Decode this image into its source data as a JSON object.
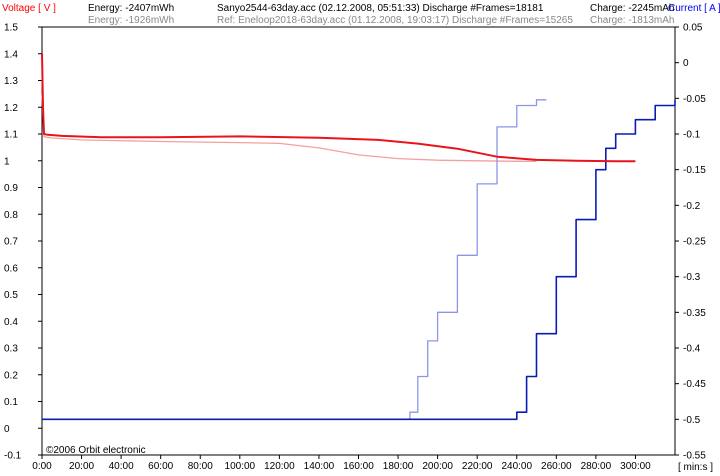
{
  "header": {
    "left_label": "Voltage [ V ]",
    "energy": "Energy: -2407mWh",
    "ref_energy": "Energy: -1926mWh",
    "file": "Sanyo2544-63day.acc (02.12.2008, 05:51:33)   Discharge  #Frames=18181",
    "ref_file": "Ref: Eneloop2018-63day.acc (01.12.2008, 19:03:17)   Discharge  #Frames=15265",
    "charge": "Charge: -2245mAh",
    "ref_charge": "Charge: -1813mAh",
    "right_label": "Current [ A ]"
  },
  "footer": {
    "copyright": "©2006 Orbit electronic",
    "x_unit": "[ min:s ]"
  },
  "colors": {
    "voltage": "#e8141c",
    "ref_voltage": "#f4a0a0",
    "current": "#0a1cb4",
    "ref_current": "#8c96e6",
    "axis_label": "#ff0000",
    "right_label": "#0000ff"
  },
  "chart_data": {
    "type": "line",
    "title": "Sanyo2544-63day.acc (02.12.2008, 05:51:33) Discharge #Frames=18181",
    "xlabel": "[ min:s ]",
    "ylabel": "Voltage [ V ]",
    "y2label": "Current [ A ]",
    "xlim": [
      0,
      320
    ],
    "ylim": [
      -0.1,
      1.5
    ],
    "y2lim": [
      -0.55,
      0.05
    ],
    "x_ticks": [
      "0:00",
      "20:00",
      "40:00",
      "60:00",
      "80:00",
      "100:00",
      "120:00",
      "140:00",
      "160:00",
      "180:00",
      "200:00",
      "220:00",
      "240:00",
      "260:00",
      "280:00",
      "300:00"
    ],
    "y_ticks": [
      "1.5",
      "1.4",
      "1.3",
      "1.2",
      "1.1",
      "1",
      "0.9",
      "0.8",
      "0.7",
      "0.6",
      "0.5",
      "0.4",
      "0.3",
      "0.2",
      "0.1",
      "0",
      "-0.1"
    ],
    "y2_ticks": [
      "0.05",
      "0",
      "-0.05",
      "-0.1",
      "-0.15",
      "-0.2",
      "-0.25",
      "-0.3",
      "-0.35",
      "-0.4",
      "-0.45",
      "-0.5",
      "-0.55"
    ],
    "grid": false,
    "series": [
      {
        "name": "Sanyo2544-63day.acc",
        "axis": "voltage",
        "color": "#e8141c",
        "x": [
          0,
          0.5,
          1,
          3,
          10,
          30,
          60,
          100,
          140,
          170,
          190,
          210,
          230,
          250,
          270,
          290,
          300
        ],
        "y": [
          1.4,
          1.2,
          1.1,
          1.097,
          1.093,
          1.088,
          1.088,
          1.091,
          1.086,
          1.078,
          1.064,
          1.045,
          1.015,
          1.003,
          1.0,
          0.998,
          0.998
        ]
      },
      {
        "name": "Ref: Eneloop2018-63day.acc",
        "axis": "voltage",
        "color": "#f4a0a0",
        "x": [
          0,
          1,
          5,
          20,
          60,
          100,
          120,
          140,
          160,
          180,
          200,
          220,
          240,
          250
        ],
        "y": [
          1.25,
          1.09,
          1.085,
          1.078,
          1.072,
          1.068,
          1.065,
          1.048,
          1.022,
          1.008,
          1.002,
          1.0,
          0.998,
          0.998
        ]
      },
      {
        "name": "Sanyo2544-63day.acc",
        "axis": "current",
        "color": "#0a1cb4",
        "x": [
          0,
          230,
          237,
          240,
          245,
          250,
          260,
          270,
          280,
          285,
          290,
          300,
          310,
          320
        ],
        "y": [
          -0.5,
          -0.5,
          -0.5,
          -0.49,
          -0.44,
          -0.38,
          -0.3,
          -0.22,
          -0.15,
          -0.12,
          -0.1,
          -0.08,
          -0.06,
          -0.052
        ]
      },
      {
        "name": "Ref: Eneloop2018-63day.acc",
        "axis": "current",
        "color": "#8c96e6",
        "x": [
          0,
          184,
          186,
          190,
          195,
          200,
          210,
          220,
          230,
          240,
          250,
          255
        ],
        "y": [
          -0.5,
          -0.5,
          -0.49,
          -0.44,
          -0.39,
          -0.35,
          -0.27,
          -0.17,
          -0.09,
          -0.06,
          -0.052,
          -0.052
        ]
      }
    ]
  }
}
